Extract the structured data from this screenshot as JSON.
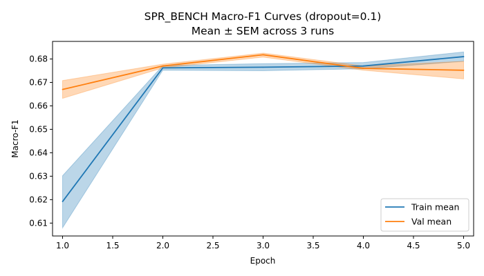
{
  "chart_data": {
    "type": "line",
    "title": "SPR_BENCH Macro-F1 Curves (dropout=0.1)",
    "subtitle": "Mean ± SEM across 3 runs",
    "xlabel": "Epoch",
    "ylabel": "Macro-F1",
    "xlim": [
      0.9,
      5.1
    ],
    "ylim": [
      0.6045,
      0.6875
    ],
    "x_ticks": [
      1.0,
      1.5,
      2.0,
      2.5,
      3.0,
      3.5,
      4.0,
      4.5,
      5.0
    ],
    "x_tick_labels": [
      "1.0",
      "1.5",
      "2.0",
      "2.5",
      "3.0",
      "3.5",
      "4.0",
      "4.5",
      "5.0"
    ],
    "y_ticks": [
      0.61,
      0.62,
      0.63,
      0.64,
      0.65,
      0.66,
      0.67,
      0.68
    ],
    "y_tick_labels": [
      "0.61",
      "0.62",
      "0.63",
      "0.64",
      "0.65",
      "0.66",
      "0.67",
      "0.68"
    ],
    "x": [
      1,
      2,
      3,
      4,
      5
    ],
    "series": [
      {
        "name": "Train mean",
        "color": "#1f77b4",
        "values": [
          0.6192,
          0.6762,
          0.6765,
          0.677,
          0.681
        ],
        "lower": [
          0.608,
          0.6752,
          0.675,
          0.6758,
          0.679
        ],
        "upper": [
          0.6302,
          0.6772,
          0.678,
          0.6785,
          0.683
        ]
      },
      {
        "name": "Val mean",
        "color": "#ff7f0e",
        "values": [
          0.667,
          0.677,
          0.6818,
          0.676,
          0.6752
        ],
        "lower": [
          0.6632,
          0.6762,
          0.6808,
          0.6752,
          0.6715
        ],
        "upper": [
          0.6708,
          0.6778,
          0.6825,
          0.677,
          0.679
        ]
      }
    ],
    "legend_position": "lower-right",
    "grid": false
  }
}
